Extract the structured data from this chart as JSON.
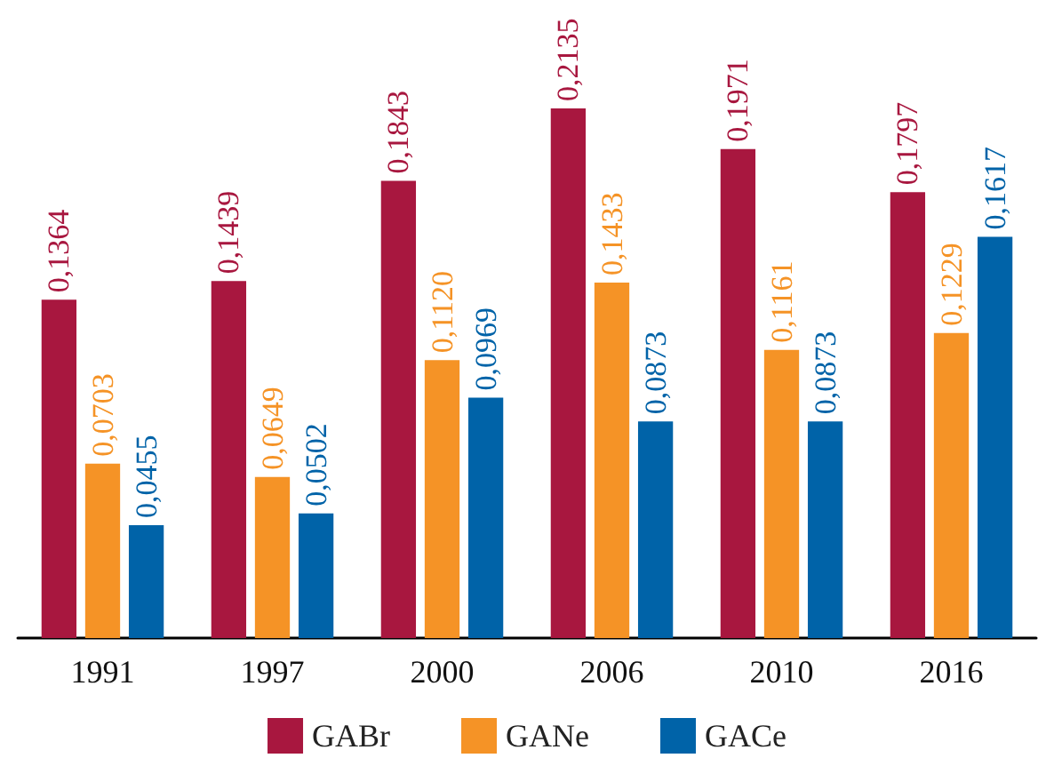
{
  "chart_data": {
    "type": "bar",
    "categories": [
      "1991",
      "1997",
      "2000",
      "2006",
      "2010",
      "2016"
    ],
    "series": [
      {
        "name": "GABr",
        "color": "#a8173f",
        "values": [
          0.1364,
          0.1439,
          0.1843,
          0.2135,
          0.1971,
          0.1797
        ],
        "value_labels": [
          "0,1364",
          "0,1439",
          "0,1843",
          "0,2135",
          "0,1971",
          "0,1797"
        ]
      },
      {
        "name": "GANe",
        "color": "#f59326",
        "values": [
          0.0703,
          0.0649,
          0.112,
          0.1433,
          0.1161,
          0.1229
        ],
        "value_labels": [
          "0,0703",
          "0,0649",
          "0,1120",
          "0,1433",
          "0,1161",
          "0,1229"
        ]
      },
      {
        "name": "GACe",
        "color": "#0063a8",
        "values": [
          0.0455,
          0.0502,
          0.0969,
          0.0873,
          0.0873,
          0.1617
        ],
        "value_labels": [
          "0,0455",
          "0,0502",
          "0,0969",
          "0,0873",
          "0,0873",
          "0,1617"
        ]
      }
    ],
    "legend": "bottom"
  }
}
